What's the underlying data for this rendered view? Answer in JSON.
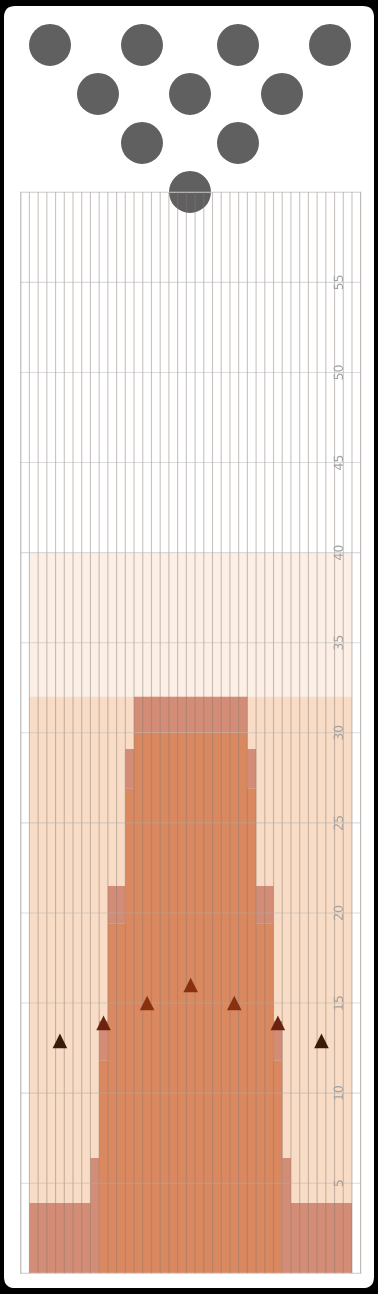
{
  "chart_data": {
    "type": "area",
    "stacked": true,
    "categories": [
      null,
      null,
      null,
      null,
      null,
      null,
      null,
      null,
      null,
      null,
      null,
      null,
      null,
      null,
      null,
      null,
      null,
      null,
      null,
      null,
      null,
      null,
      null,
      null,
      null,
      null,
      null,
      null,
      null,
      null,
      null,
      null,
      null,
      null,
      null,
      null,
      null,
      null,
      null
    ],
    "series": [
      {
        "color": "#d9885f",
        "values": [
          0,
          0,
          0,
          0,
          0,
          0,
          0,
          0,
          0,
          11.8,
          19.4,
          19.4,
          26.9,
          30,
          30,
          30,
          30,
          30,
          30,
          30,
          30,
          30,
          30,
          30,
          30,
          30,
          26.9,
          19.4,
          19.4,
          11.8,
          0,
          0,
          0,
          0,
          0,
          0,
          0,
          0,
          0
        ]
      },
      {
        "color": "#d38c75",
        "values": [
          0,
          3.9,
          3.9,
          3.9,
          3.9,
          3.9,
          3.9,
          3.9,
          6.4,
          2.2,
          2.1,
          2.1,
          2.2,
          2,
          2,
          2,
          2,
          2,
          2,
          2,
          2,
          2,
          2,
          2,
          2,
          2,
          2.2,
          2.1,
          2.1,
          2.2,
          6.4,
          3.9,
          3.9,
          3.9,
          3.9,
          3.9,
          3.9,
          3.9,
          0
        ]
      },
      {
        "type": "scatter",
        "marker": "triangle",
        "colors": [
          null,
          null,
          null,
          null,
          "#3a1a08",
          null,
          null,
          null,
          null,
          "#6b2210",
          null,
          null,
          null,
          null,
          "#8a3010",
          null,
          null,
          null,
          null,
          "#8a3010",
          null,
          null,
          null,
          null,
          "#8a3010",
          null,
          null,
          null,
          null,
          "#6b2210",
          null,
          null,
          null,
          null,
          "#3a1a08",
          null,
          null,
          null,
          null
        ],
        "values": [
          null,
          null,
          null,
          null,
          12.9,
          null,
          null,
          null,
          null,
          13.9,
          null,
          null,
          null,
          null,
          15,
          null,
          null,
          null,
          null,
          16,
          null,
          null,
          null,
          null,
          15,
          null,
          null,
          null,
          null,
          13.9,
          null,
          null,
          null,
          null,
          12.9,
          null,
          null,
          null,
          null
        ]
      }
    ],
    "bands": [
      {
        "axis": "y",
        "from": 0,
        "to": 40,
        "color": "#fcefe6"
      },
      {
        "axis": "y",
        "from": 0,
        "to": 32,
        "color": "#f8dcc6"
      }
    ],
    "ylim": [
      0,
      60
    ],
    "yticks": [
      5,
      10,
      15,
      20,
      25,
      30,
      35,
      40,
      45,
      50,
      55
    ],
    "grid": true
  }
}
